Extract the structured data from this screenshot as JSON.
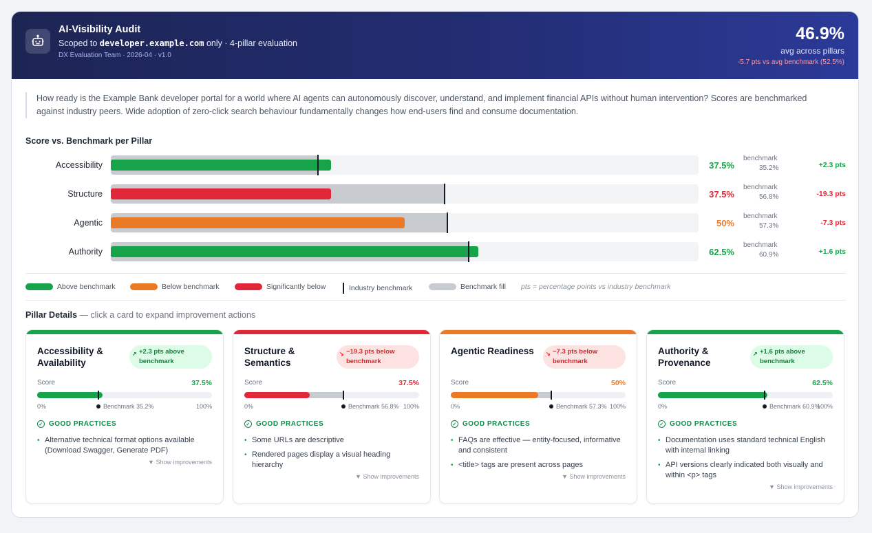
{
  "header": {
    "title": "AI-Visibility Audit",
    "scope_prefix": "Scoped to",
    "scope_domain": "developer.example.com",
    "scope_suffix": "only · 4-pillar evaluation",
    "meta": "DX Evaluation Team · 2026-04 · v1.0",
    "score": "46.9%",
    "score_caption": "avg across pillars",
    "delta": "-5.7 pts vs avg benchmark (52.5%)",
    "icon": "robot-icon"
  },
  "intro": "How ready is the Example Bank developer portal for a world where AI agents can autonomously discover, understand, and implement financial APIs without human intervention? Scores are benchmarked against industry peers. Wide adoption of zero-click search behaviour fundamentally changes how end-users find and consume documentation.",
  "bars_title": "Score vs. Benchmark per Pillar",
  "colors": {
    "above": "#16a34a",
    "below": "#ea7a26",
    "sig_below": "#e0283a",
    "bench_fill": "#c8cbd0"
  },
  "pillars": [
    {
      "label": "Accessibility",
      "score": 37.5,
      "score_text": "37.5%",
      "benchmark": 35.2,
      "bench_caption": "benchmark",
      "bench_text": "35.2%",
      "delta": "+2.3 pts",
      "status": "above"
    },
    {
      "label": "Structure",
      "score": 37.5,
      "score_text": "37.5%",
      "benchmark": 56.8,
      "bench_caption": "benchmark",
      "bench_text": "56.8%",
      "delta": "-19.3 pts",
      "status": "sig_below"
    },
    {
      "label": "Agentic",
      "score": 50,
      "score_text": "50%",
      "benchmark": 57.3,
      "bench_caption": "benchmark",
      "bench_text": "57.3%",
      "delta": "-7.3 pts",
      "status": "below"
    },
    {
      "label": "Authority",
      "score": 62.5,
      "score_text": "62.5%",
      "benchmark": 60.9,
      "bench_caption": "benchmark",
      "bench_text": "60.9%",
      "delta": "+1.6 pts",
      "status": "above"
    }
  ],
  "legend": {
    "above": "Above benchmark",
    "below": "Below benchmark",
    "sig_below": "Significantly below",
    "industry": "Industry benchmark",
    "bench_fill": "Benchmark fill",
    "note": "pts = percentage points vs industry benchmark"
  },
  "details": {
    "title": "Pillar Details",
    "hint": "— click a card to expand improvement actions"
  },
  "cards": [
    {
      "title": "Accessibility & Availability",
      "badge": "+2.3 pts above benchmark",
      "badge_icon": "trend-up-icon",
      "score_label": "Score",
      "score_text": "37.5%",
      "score": 37.5,
      "benchmark": 35.2,
      "axis_min": "0%",
      "axis_max": "100%",
      "bench_label": "Benchmark 35.2%",
      "gp_title": "GOOD PRACTICES",
      "practices": [
        "Alternative technical format options available (Download Swagger, Generate PDF)"
      ],
      "show": "▼ Show improvements",
      "status": "above"
    },
    {
      "title": "Structure & Semantics",
      "badge": "−19.3 pts below benchmark",
      "badge_icon": "trend-down-icon",
      "score_label": "Score",
      "score_text": "37.5%",
      "score": 37.5,
      "benchmark": 56.8,
      "axis_min": "0%",
      "axis_max": "100%",
      "bench_label": "Benchmark 56.8%",
      "gp_title": "GOOD PRACTICES",
      "practices": [
        "Some URLs are descriptive",
        "Rendered pages display a visual heading hierarchy"
      ],
      "show": "▼ Show improvements",
      "status": "sig_below"
    },
    {
      "title": "Agentic Readiness",
      "badge": "−7.3 pts below benchmark",
      "badge_icon": "trend-down-icon",
      "score_label": "Score",
      "score_text": "50%",
      "score": 50,
      "benchmark": 57.3,
      "axis_min": "0%",
      "axis_max": "100%",
      "bench_label": "Benchmark 57.3%",
      "gp_title": "GOOD PRACTICES",
      "practices": [
        "FAQs are effective — entity-focused, informative and consistent",
        "<title> tags are present across pages"
      ],
      "show": "▼ Show improvements",
      "status": "below"
    },
    {
      "title": "Authority & Provenance",
      "badge": "+1.6 pts above benchmark",
      "badge_icon": "trend-up-icon",
      "score_label": "Score",
      "score_text": "62.5%",
      "score": 62.5,
      "benchmark": 60.9,
      "axis_min": "0%",
      "axis_max": "100%",
      "bench_label": "Benchmark 60.9%",
      "gp_title": "GOOD PRACTICES",
      "practices": [
        "Documentation uses standard technical English with internal linking",
        "API versions clearly indicated both visually and within <p> tags"
      ],
      "show": "▼ Show improvements",
      "status": "above"
    }
  ]
}
